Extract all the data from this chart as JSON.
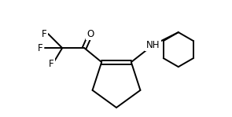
{
  "background_color": "#ffffff",
  "line_color": "#000000",
  "line_width": 1.4,
  "font_size": 8.5,
  "figsize": [
    2.95,
    1.49
  ],
  "dpi": 100,
  "xlim": [
    0,
    295
  ],
  "ylim": [
    0,
    149
  ]
}
